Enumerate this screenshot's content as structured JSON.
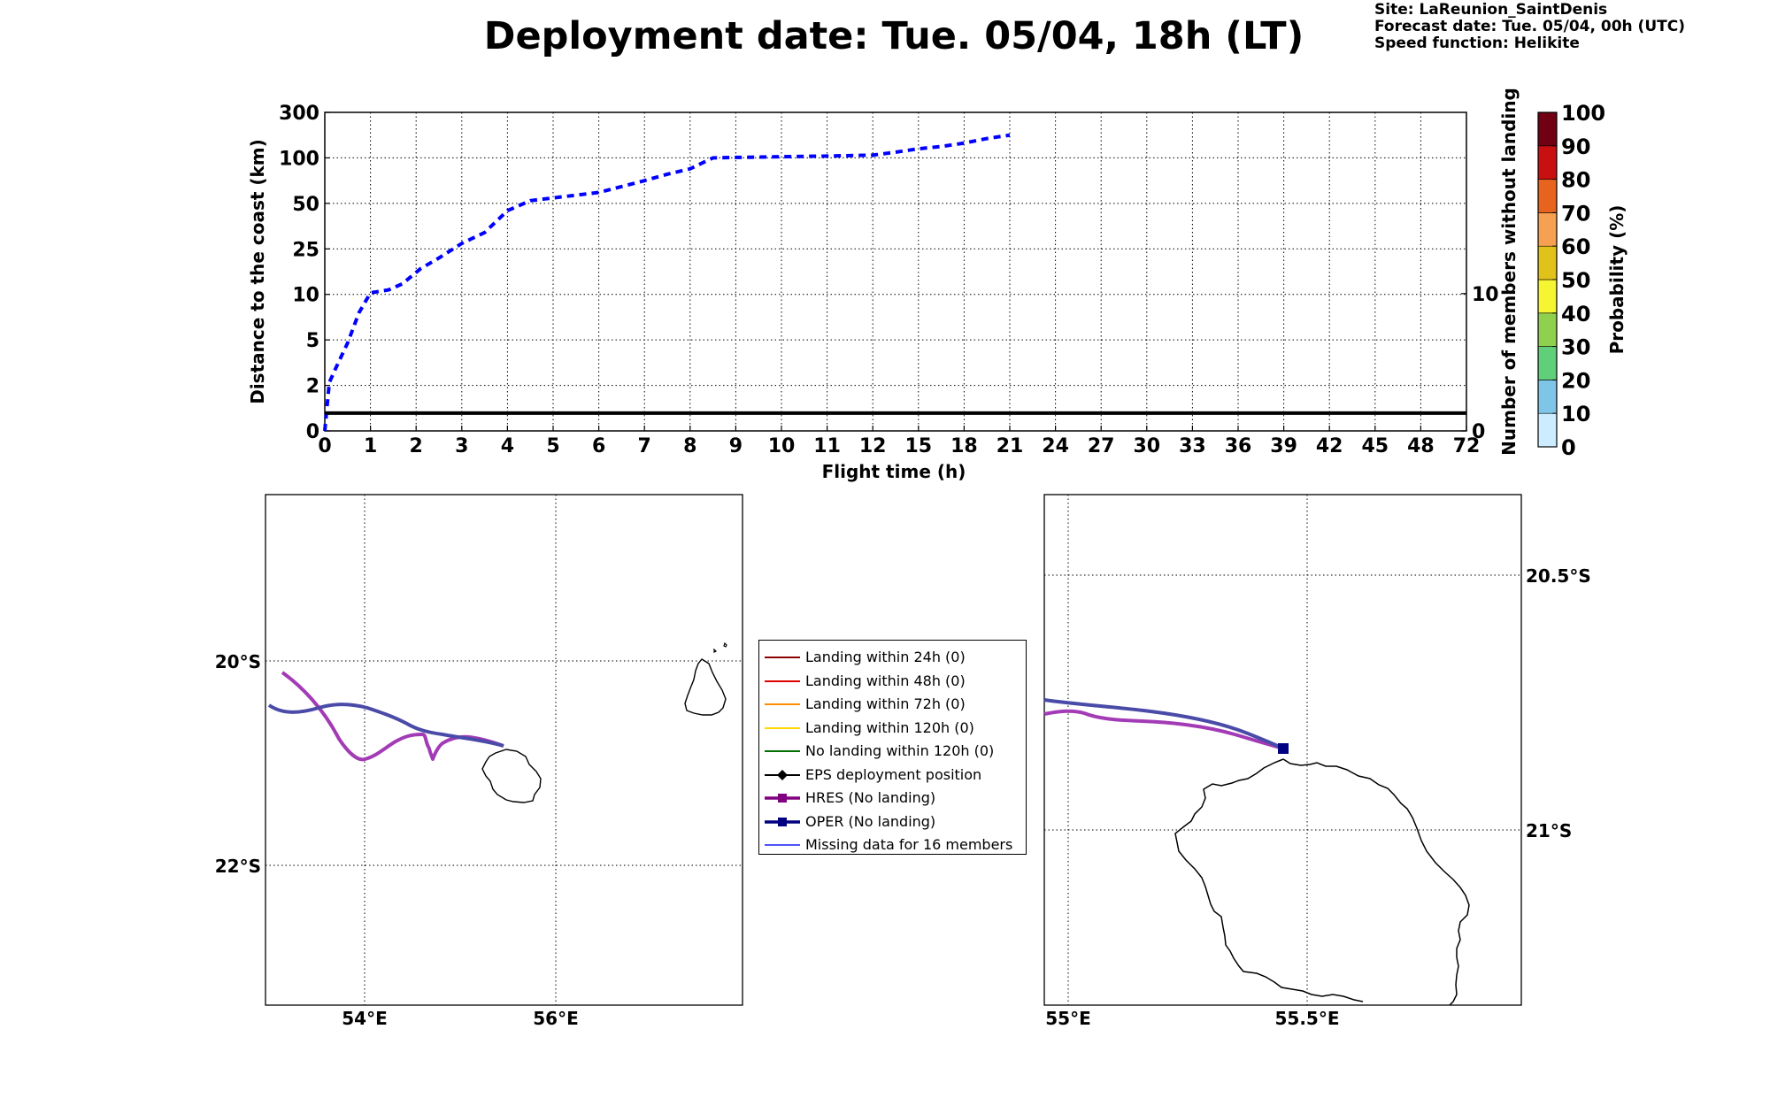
{
  "title": "Deployment date: Tue. 05/04, 18h (LT)",
  "info": {
    "site": "Site: LaReunion_SaintDenis",
    "forecast": "Forecast date: Tue. 05/04, 00h (UTC)",
    "speed": "Speed function: Helikite"
  },
  "chart_data": [
    {
      "type": "line",
      "xlabel": "Flight time (h)",
      "ylabel": "Distance to the coast (km)",
      "y2label": "Number of members without landing",
      "x_ticks": [
        "0",
        "1",
        "2",
        "3",
        "4",
        "5",
        "6",
        "7",
        "8",
        "9",
        "10",
        "11",
        "12",
        "15",
        "18",
        "21",
        "24",
        "27",
        "30",
        "33",
        "36",
        "39",
        "42",
        "45",
        "48",
        "72"
      ],
      "y_ticks": [
        "0",
        "2",
        "5",
        "10",
        "25",
        "50",
        "100",
        "300"
      ],
      "y2_ticks": [
        "0",
        "10"
      ],
      "grid": true,
      "series": [
        {
          "style": "dashed",
          "color": "#0000ff",
          "x": [
            0,
            0.05,
            0.1,
            0.25,
            0.5,
            0.75,
            1,
            1.4,
            1.7,
            2.1,
            2.5,
            3,
            3.5,
            4,
            4.5,
            5,
            6,
            7,
            7.5,
            8,
            8.5,
            9,
            10,
            11,
            12,
            13.5,
            15,
            16.5,
            18,
            19.5,
            21
          ],
          "y": [
            0,
            1.1,
            2.2,
            3.2,
            4.8,
            8,
            10.5,
            11.5,
            13.5,
            18.5,
            22,
            28,
            34,
            46,
            53,
            56,
            62,
            75,
            82,
            88,
            100,
            102,
            105,
            108,
            112,
            125,
            140,
            150,
            165,
            185,
            200
          ]
        },
        {
          "style": "solid",
          "color": "#000000",
          "axis": "right",
          "x": [
            0,
            72
          ],
          "y": [
            1.3,
            1.3
          ]
        }
      ]
    },
    {
      "type": "heatmap",
      "name": "colorbar",
      "ylabel": "Probability (%)",
      "ticks": [
        "0",
        "10",
        "20",
        "30",
        "40",
        "50",
        "60",
        "70",
        "80",
        "90",
        "100"
      ],
      "colors": [
        "#ccecff",
        "#7ec5e8",
        "#5fcf7a",
        "#8fd14f",
        "#f5f532",
        "#e0c21a",
        "#f7a052",
        "#e8641e",
        "#c81010",
        "#700012"
      ]
    }
  ],
  "map_left": {
    "lon_labels": [
      "54°E",
      "56°E"
    ],
    "lat_labels": [
      "20°S",
      "22°S"
    ]
  },
  "map_right": {
    "lon_labels": [
      "55°E",
      "55.5°E"
    ],
    "lat_labels": [
      "20.5°S",
      "21°S"
    ]
  },
  "legend": {
    "items": [
      {
        "label": "Landing within 24h (0)",
        "color": "#8b0000",
        "marker": "none"
      },
      {
        "label": "Landing within 48h (0)",
        "color": "#e00000",
        "marker": "none"
      },
      {
        "label": "Landing within 72h (0)",
        "color": "#ff8c00",
        "marker": "none"
      },
      {
        "label": "Landing within 120h (0)",
        "color": "#ffd700",
        "marker": "none"
      },
      {
        "label": "No landing within 120h (0)",
        "color": "#007000",
        "marker": "none"
      },
      {
        "label": "EPS deployment position",
        "color": "#000000",
        "marker": "diamond"
      },
      {
        "label": "HRES (No landing)",
        "color": "#800080",
        "marker": "square"
      },
      {
        "label": "OPER (No landing)",
        "color": "#000080",
        "marker": "square"
      },
      {
        "label": "Missing data for 16 members",
        "color": "#5050ff",
        "marker": "none"
      }
    ]
  },
  "colors": {
    "hres": "#a23bb5",
    "oper": "#4a4aa8",
    "dash": "#0000ff"
  }
}
